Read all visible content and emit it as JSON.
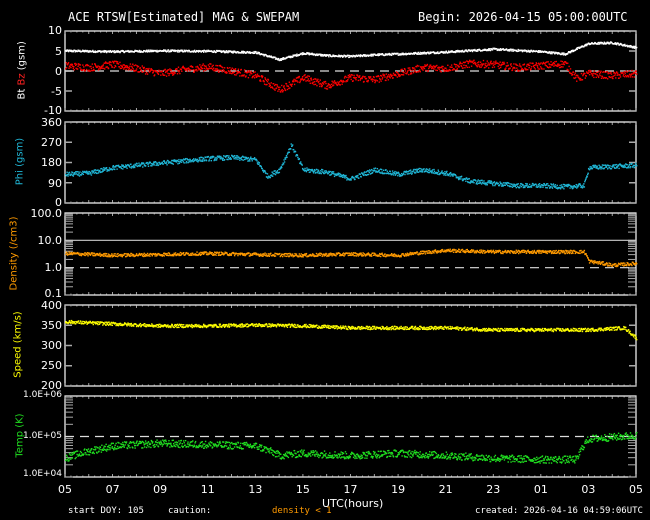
{
  "header": {
    "title": "ACE RTSW[Estimated] MAG & SWEPAM",
    "begin": "Begin: 2026-04-15 05:00:00UTC"
  },
  "footer": {
    "start_doy": "start DOY: 105",
    "caution": "caution:",
    "caution_note": "density < 1",
    "created": "created: 2026-04-16 04:59:06UTC",
    "xlabel": "UTC(hours)"
  },
  "colors": {
    "background": "#000000",
    "frame": "#ffffff",
    "bt": "#ffffff",
    "bz": "#ff0000",
    "phi": "#20b8d8",
    "density": "#ff9a00",
    "speed": "#ffff00",
    "temp": "#20e020",
    "caution": "#ff9a00"
  },
  "chart_data": [
    {
      "type": "scatter",
      "title": "Bt / Bz (gsm)",
      "ylabel_parts": [
        "Bt",
        "Bz",
        "(gsm)"
      ],
      "yticks": [
        "10",
        "5",
        "0",
        "-5",
        "-10"
      ],
      "ylim": [
        -10,
        10
      ],
      "reference_line": 0,
      "x_categories": [
        "05",
        "07",
        "09",
        "11",
        "13",
        "15",
        "17",
        "19",
        "21",
        "23",
        "01",
        "03",
        "05"
      ],
      "series": [
        {
          "name": "Bt",
          "color": "#ffffff",
          "x": [
            0,
            2,
            4,
            6,
            8,
            9,
            10,
            11,
            12,
            13,
            14,
            16,
            18,
            20,
            21,
            22,
            23,
            24
          ],
          "values": [
            5.2,
            5.0,
            5.2,
            5.1,
            4.8,
            3.0,
            4.6,
            4.0,
            3.8,
            4.2,
            4.4,
            4.9,
            5.6,
            5.0,
            4.4,
            7.0,
            7.2,
            6.0
          ]
        },
        {
          "name": "Bz",
          "color": "#ff0000",
          "x": [
            0,
            1,
            2,
            3,
            4,
            5,
            6,
            7,
            8,
            9,
            10,
            11,
            12,
            13,
            14,
            15,
            16,
            17,
            18,
            19,
            20,
            21,
            21.5,
            22,
            23,
            24
          ],
          "values": [
            1.5,
            1.0,
            1.8,
            0.8,
            -0.5,
            0.5,
            1.2,
            0.2,
            -1.0,
            -4.5,
            -1.5,
            -3.5,
            -1.5,
            -2.0,
            -0.5,
            1.0,
            0.8,
            2.0,
            1.8,
            1.0,
            1.5,
            2.0,
            -1.8,
            -0.5,
            -1.0,
            -0.5
          ]
        }
      ]
    },
    {
      "type": "scatter",
      "title": "Phi (gsm)",
      "ylabel": "Phi (gsm)",
      "yticks": [
        "360",
        "270",
        "180",
        "90",
        "0"
      ],
      "ylim": [
        0,
        360
      ],
      "series": [
        {
          "name": "Phi",
          "color": "#20b8d8",
          "x": [
            0,
            1,
            2,
            3,
            4,
            5,
            6,
            7,
            8,
            8.5,
            9,
            9.5,
            10,
            11,
            12,
            13,
            14,
            15,
            16,
            17,
            18,
            19,
            20,
            21,
            21.8,
            22,
            23,
            24
          ],
          "values": [
            130,
            135,
            160,
            170,
            180,
            190,
            200,
            205,
            195,
            120,
            150,
            260,
            150,
            140,
            110,
            150,
            130,
            150,
            135,
            100,
            90,
            80,
            80,
            75,
            80,
            160,
            165,
            170
          ]
        }
      ]
    },
    {
      "type": "scatter",
      "title": "Density (/cm3)",
      "ylabel": "Density (/cm3)",
      "yscale": "log",
      "yticks": [
        "100.0",
        "10.0",
        "1.0",
        "0.1"
      ],
      "ylim": [
        0.1,
        100
      ],
      "reference_lines": [
        10,
        1
      ],
      "series": [
        {
          "name": "Density",
          "color": "#ff9a00",
          "x": [
            0,
            2,
            4,
            6,
            8,
            10,
            12,
            14,
            16,
            18,
            20,
            21.8,
            22,
            23,
            24
          ],
          "values": [
            3.5,
            3.0,
            3.2,
            3.5,
            3.2,
            3.0,
            3.3,
            3.0,
            4.5,
            4.0,
            4.0,
            4.0,
            1.8,
            1.3,
            1.5
          ]
        }
      ]
    },
    {
      "type": "scatter",
      "title": "Speed (km/s)",
      "ylabel": "Speed (km/s)",
      "yticks": [
        "400",
        "350",
        "300",
        "250",
        "200"
      ],
      "ylim": [
        200,
        400
      ],
      "series": [
        {
          "name": "Speed",
          "color": "#ffff00",
          "x": [
            0,
            2,
            4,
            6,
            8,
            10,
            12,
            14,
            16,
            18,
            20,
            22,
            23.5,
            24
          ],
          "values": [
            360,
            355,
            350,
            350,
            352,
            350,
            345,
            345,
            345,
            340,
            340,
            340,
            345,
            320
          ]
        }
      ]
    },
    {
      "type": "scatter",
      "title": "Temp (K)",
      "ylabel": "Temp (K)",
      "yscale": "log",
      "yticks": [
        "1.0E+06",
        "1.0E+05",
        "1.0E+04"
      ],
      "ylim": [
        10000,
        1000000
      ],
      "reference_line": 100000,
      "series": [
        {
          "name": "Temp",
          "color": "#20e020",
          "x": [
            0,
            2,
            4,
            6,
            8,
            9,
            10,
            12,
            14,
            16,
            18,
            20,
            21.5,
            22,
            23,
            24
          ],
          "values": [
            30000,
            60000,
            70000,
            65000,
            60000,
            35000,
            40000,
            35000,
            40000,
            35000,
            30000,
            28000,
            28000,
            90000,
            100000,
            110000
          ]
        }
      ]
    }
  ]
}
